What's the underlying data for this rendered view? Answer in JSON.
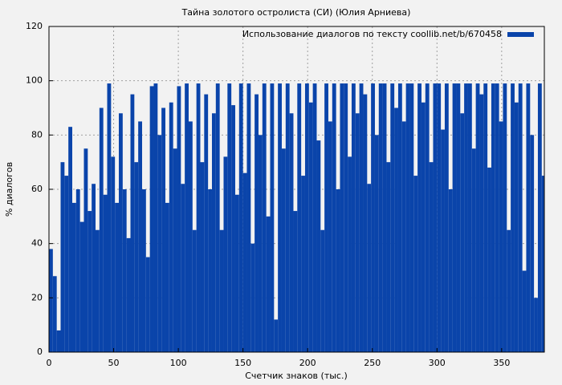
{
  "chart_data": {
    "type": "bar",
    "title": "Тайна золотого остролиста (СИ) (Юлия Арниева)",
    "x_label": "Счетчик знаков (тыс.)",
    "y_label": "% диалогов",
    "x": [
      0,
      3,
      6,
      9,
      12,
      15,
      18,
      21,
      24,
      27,
      30,
      33,
      36,
      39,
      42,
      45,
      48,
      51,
      54,
      57,
      60,
      63,
      66,
      69,
      72,
      75,
      78,
      81,
      84,
      87,
      90,
      93,
      96,
      99,
      102,
      105,
      108,
      111,
      114,
      117,
      120,
      123,
      126,
      129,
      132,
      135,
      138,
      141,
      144,
      147,
      150,
      153,
      156,
      159,
      162,
      165,
      168,
      171,
      174,
      177,
      180,
      183,
      186,
      189,
      192,
      195,
      198,
      201,
      204,
      207,
      210,
      213,
      216,
      219,
      222,
      225,
      228,
      231,
      234,
      237,
      240,
      243,
      246,
      249,
      252,
      255,
      258,
      261,
      264,
      267,
      270,
      273,
      276,
      279,
      282,
      285,
      288,
      291,
      294,
      297,
      300,
      303,
      306,
      309,
      312,
      315,
      318,
      321,
      324,
      327,
      330,
      333,
      336,
      339,
      342,
      345,
      348,
      351,
      354,
      357,
      360,
      363,
      366,
      369,
      372,
      375,
      378,
      381
    ],
    "series": [
      {
        "name": "Использование диалогов по тексту coollib.net/b/670458",
        "color": "#0a44aa",
        "values": [
          38,
          28,
          8,
          70,
          65,
          83,
          55,
          60,
          48,
          75,
          52,
          62,
          45,
          90,
          58,
          99,
          72,
          55,
          88,
          60,
          42,
          95,
          70,
          85,
          60,
          35,
          98,
          99,
          80,
          90,
          55,
          92,
          75,
          98,
          62,
          99,
          85,
          45,
          99,
          70,
          95,
          60,
          88,
          99,
          45,
          72,
          99,
          91,
          58,
          99,
          66,
          99,
          40,
          95,
          80,
          99,
          50,
          99,
          12,
          99,
          75,
          99,
          88,
          52,
          99,
          65,
          99,
          92,
          99,
          78,
          45,
          99,
          85,
          99,
          60,
          99,
          99,
          72,
          99,
          88,
          99,
          95,
          62,
          99,
          80,
          99,
          99,
          70,
          99,
          90,
          99,
          85,
          99,
          99,
          65,
          99,
          92,
          99,
          70,
          99,
          99,
          82,
          99,
          60,
          99,
          99,
          88,
          99,
          99,
          75,
          99,
          95,
          99,
          68,
          99,
          99,
          85,
          99,
          45,
          99,
          92,
          99,
          30,
          99,
          80,
          20,
          99,
          65
        ]
      }
    ],
    "xlim": [
      0,
      383
    ],
    "ylim": [
      0,
      120
    ],
    "xticks": [
      0,
      50,
      100,
      150,
      200,
      250,
      300,
      350
    ],
    "yticks": [
      0,
      20,
      40,
      60,
      80,
      100,
      120
    ],
    "grid": true,
    "legend": "upper right"
  }
}
